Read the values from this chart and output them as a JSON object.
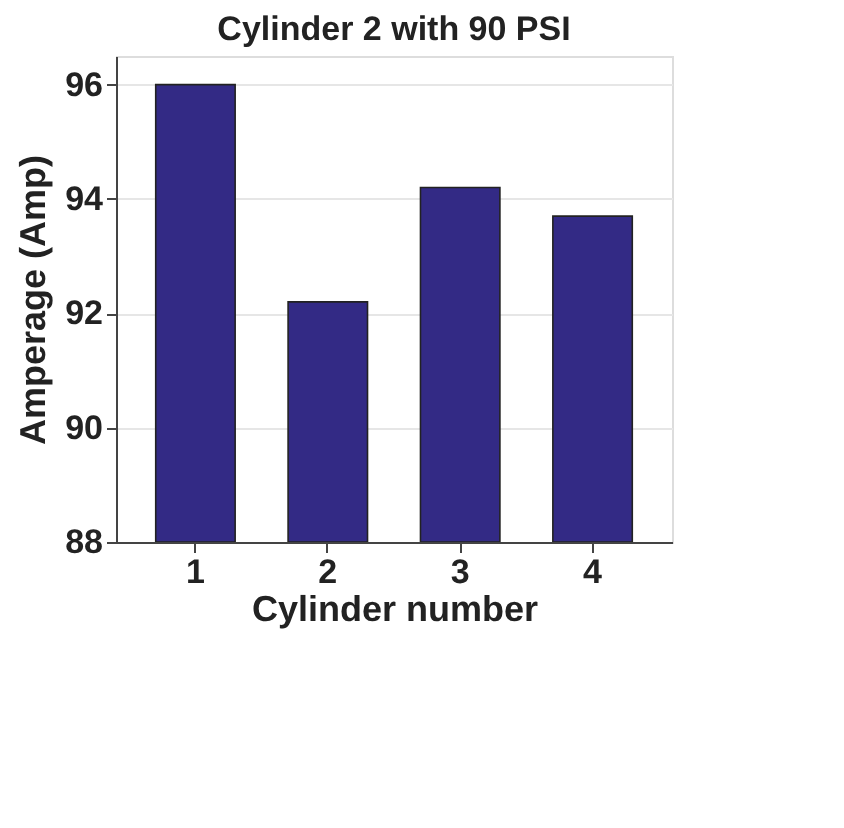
{
  "chart_data": {
    "type": "bar",
    "title": "Cylinder 2 with 90 PSI",
    "xlabel": "Cylinder number",
    "ylabel": "Amperage (Amp)",
    "categories": [
      "1",
      "2",
      "3",
      "4"
    ],
    "values": [
      96.0,
      92.2,
      94.2,
      93.7
    ],
    "color": "#332a85",
    "ylim": [
      88,
      96.5
    ],
    "yticks": [
      88,
      90,
      92,
      94,
      96
    ],
    "grid": "y"
  }
}
